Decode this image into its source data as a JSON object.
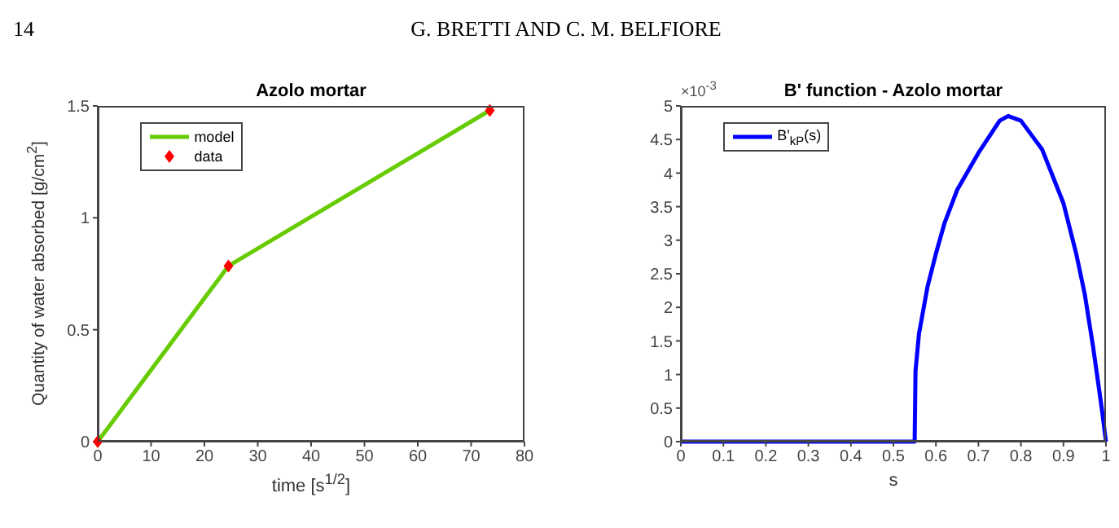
{
  "chart_data": [
    {
      "type": "line",
      "title": "Azolo mortar",
      "xlabel": "time [s$^{1/2}$]",
      "ylabel": "Quantity of water absorbed [g/cm$^{2}$]",
      "annotations": [
        "14",
        "G. BRETTI AND C. M. BELFIORE"
      ],
      "xlim": [
        0,
        80
      ],
      "xticks": [
        0,
        10,
        20,
        30,
        40,
        50,
        60,
        70,
        80
      ],
      "ylim": [
        0,
        1.5
      ],
      "yticks": [
        0,
        0.5,
        1,
        1.5
      ],
      "grid": false,
      "legend": "top left",
      "series": [
        {
          "name": "model",
          "marker": "none",
          "color": "#66cc00",
          "x": [
            0,
            24.5,
            73.5
          ],
          "values": [
            0,
            0.785,
            1.48
          ]
        },
        {
          "name": "data",
          "type": "scatter",
          "marker": "diamond",
          "color": "#ff0000",
          "x": [
            0,
            24.5,
            73.5
          ],
          "values": [
            0,
            0.785,
            1.48
          ]
        }
      ]
    },
    {
      "type": "line",
      "title": "B' function - Azolo mortar",
      "xlabel": "s",
      "annotations": [
        "×10$^{-3}$"
      ],
      "xlim": [
        0,
        1
      ],
      "xticks": [
        0,
        0.1,
        0.2,
        0.3,
        0.4,
        0.5,
        0.6,
        0.7,
        0.8,
        0.9,
        1
      ],
      "ylim": [
        0,
        5
      ],
      "yticks": [
        0,
        0.5,
        1,
        1.5,
        2,
        2.5,
        3,
        3.5,
        4,
        4.5,
        5
      ],
      "grid": false,
      "legend": "top left",
      "series": [
        {
          "name": "B'$_{kP}$(s)",
          "color": "#0000ff",
          "x": [
            0,
            0.55,
            0.552,
            0.56,
            0.58,
            0.6,
            0.62,
            0.65,
            0.7,
            0.75,
            0.77,
            0.8,
            0.85,
            0.9,
            0.93,
            0.95,
            0.97,
            0.99,
            1
          ],
          "values": [
            0,
            0,
            1.05,
            1.6,
            2.3,
            2.8,
            3.25,
            3.75,
            4.3,
            4.78,
            4.85,
            4.78,
            4.35,
            3.55,
            2.8,
            2.2,
            1.4,
            0.5,
            0
          ]
        }
      ]
    }
  ]
}
